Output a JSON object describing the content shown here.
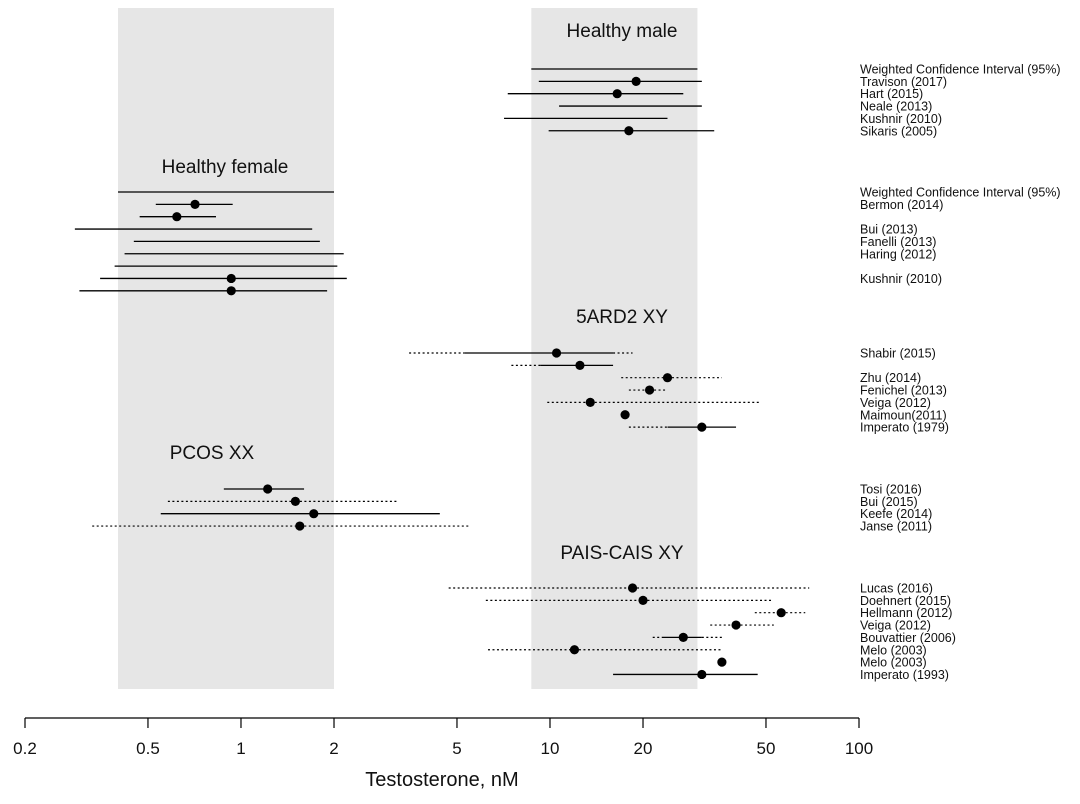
{
  "chart_data": {
    "type": "forest",
    "xlabel": "Testosterone, nM",
    "x_scale": "log",
    "xlim": [
      0.2,
      100
    ],
    "x_ticks": [
      0.2,
      0.5,
      1,
      2,
      5,
      10,
      20,
      50,
      100
    ],
    "x_tick_labels": [
      "0.2",
      "0.5",
      "1",
      "2",
      "5",
      "10",
      "20",
      "50",
      "100"
    ],
    "grid": false,
    "reference_bands": [
      {
        "name": "female",
        "x_range": [
          0.4,
          2.0
        ],
        "color": "#e6e6e6"
      },
      {
        "name": "male",
        "x_range": [
          8.7,
          30.0
        ],
        "color": "#e6e6e6"
      }
    ],
    "colors": {
      "point": "#000000",
      "line": "#000000",
      "band": "#e6e6e6"
    },
    "groups": [
      {
        "label": "Healthy male",
        "rows": [
          {
            "label": "Weighted Confidence Interval (95%)",
            "low": 8.7,
            "high": 30,
            "line": "solid"
          },
          {
            "label": "Travison (2017)",
            "point": 19,
            "low": 9.2,
            "high": 31,
            "line": "solid"
          },
          {
            "label": "Hart (2015)",
            "point": 16.5,
            "low": 7.3,
            "high": 27,
            "line": "solid"
          },
          {
            "label": "Neale (2013)",
            "low": 10.7,
            "high": 31,
            "line": "solid"
          },
          {
            "label": "Kushnir (2010)",
            "low": 7.1,
            "high": 24,
            "line": "solid"
          },
          {
            "label": "Sikaris (2005)",
            "point": 18,
            "low": 9.9,
            "high": 34,
            "line": "solid"
          }
        ]
      },
      {
        "label": "Healthy female",
        "rows": [
          {
            "label": "Weighted Confidence Interval (95%)",
            "low": 0.4,
            "high": 2.0,
            "line": "solid"
          },
          {
            "label": "Bermon (2014)",
            "point": 0.71,
            "low": 0.53,
            "high": 0.94,
            "line": "solid"
          },
          {
            "label": "",
            "point": 0.62,
            "low": 0.47,
            "high": 0.83,
            "line": "solid"
          },
          {
            "label": "Bui (2013)",
            "low": 0.29,
            "high": 1.7,
            "line": "solid"
          },
          {
            "label": "Fanelli (2013)",
            "low": 0.45,
            "high": 1.8,
            "line": "solid"
          },
          {
            "label": "Haring (2012)",
            "low": 0.42,
            "high": 2.15,
            "line": "solid"
          },
          {
            "label": "",
            "low": 0.39,
            "high": 2.05,
            "line": "solid"
          },
          {
            "label": "Kushnir (2010)",
            "point": 0.93,
            "low": 0.35,
            "high": 2.2,
            "line": "solid"
          },
          {
            "label": "",
            "point": 0.93,
            "low": 0.3,
            "high": 1.9,
            "line": "solid"
          }
        ]
      },
      {
        "label": "5ARD2 XY",
        "rows": [
          {
            "label": "Shabir (2015)",
            "point": 10.5,
            "low": 5.3,
            "high": 16,
            "outer_low": 3.5,
            "outer_high": 18.5,
            "line": "mixed"
          },
          {
            "label": "",
            "point": 12.5,
            "low": 9.3,
            "high": 16,
            "outer_low": 7.5,
            "line": "mixed"
          },
          {
            "label": "Zhu (2014)",
            "point": 24,
            "outer_low": 17,
            "outer_high": 36,
            "line": "dotted"
          },
          {
            "label": "Fenichel (2013)",
            "point": 21,
            "outer_low": 18,
            "outer_high": 24,
            "line": "dotted"
          },
          {
            "label": "Veiga (2012)",
            "point": 13.5,
            "outer_low": 9.8,
            "outer_high": 48,
            "line": "dotted"
          },
          {
            "label": "Maimoun(2011)",
            "point": 17.5,
            "line": "none"
          },
          {
            "label": "Imperato (1979)",
            "point": 31,
            "low": 24,
            "high": 40,
            "outer_low": 18,
            "line": "mixed"
          }
        ]
      },
      {
        "label": "PCOS XX",
        "rows": [
          {
            "label": "Tosi (2016)",
            "point": 1.22,
            "low": 0.88,
            "high": 1.6,
            "line": "solid"
          },
          {
            "label": "Bui (2015)",
            "point": 1.5,
            "outer_low": 0.58,
            "outer_high": 3.2,
            "line": "dotted"
          },
          {
            "label": "Keefe (2014)",
            "point": 1.72,
            "low": 0.55,
            "high": 4.4,
            "line": "solid"
          },
          {
            "label": "Janse (2011)",
            "point": 1.55,
            "outer_low": 0.33,
            "outer_high": 5.5,
            "line": "dotted"
          }
        ]
      },
      {
        "label": "PAIS-CAIS XY",
        "rows": [
          {
            "label": "Lucas (2016)",
            "point": 18.5,
            "outer_low": 4.7,
            "outer_high": 69,
            "line": "dotted"
          },
          {
            "label": "Doehnert (2015)",
            "point": 20,
            "outer_low": 6.2,
            "outer_high": 52,
            "line": "dotted"
          },
          {
            "label": "Hellmann (2012)",
            "point": 56,
            "outer_low": 46,
            "outer_high": 67,
            "line": "dotted"
          },
          {
            "label": "Veiga (2012)",
            "point": 40,
            "outer_low": 33,
            "outer_high": 53,
            "line": "dotted"
          },
          {
            "label": "Bouvattier (2006)",
            "point": 27,
            "low": 23,
            "high": 31,
            "outer_low": 21.5,
            "outer_high": 36,
            "line": "mixed"
          },
          {
            "label": "Melo (2003)",
            "point": 12,
            "outer_low": 6.3,
            "outer_high": 36,
            "line": "dotted"
          },
          {
            "label": "Melo (2003)",
            "point": 36,
            "line": "none"
          },
          {
            "label": "Imperato  (1993)",
            "point": 31,
            "low": 16,
            "high": 47,
            "line": "solid"
          }
        ]
      }
    ]
  }
}
